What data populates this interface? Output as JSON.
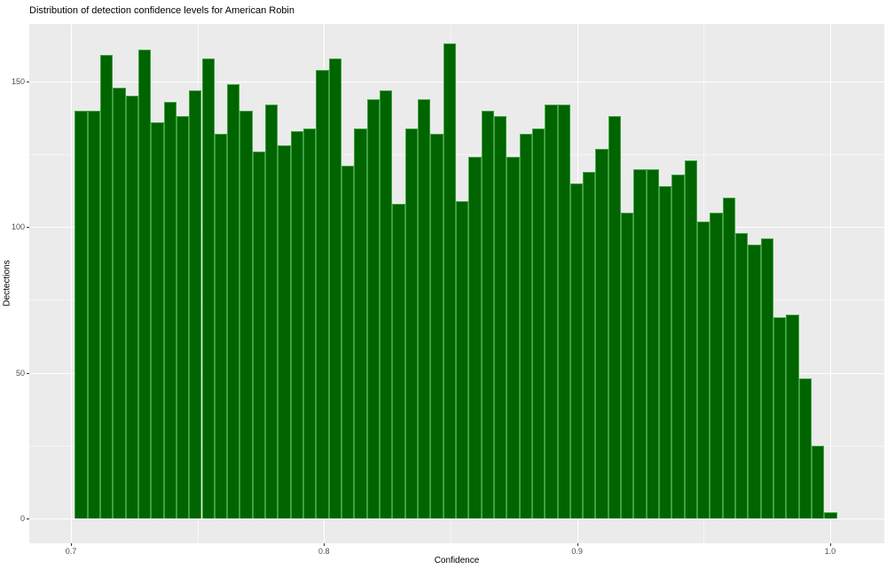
{
  "title": "Distribution of detection confidence levels for American Robin",
  "chart_data": {
    "type": "bar",
    "subtype": "histogram",
    "title": "Distribution of detection confidence levels for American Robin",
    "xlabel": "Confidence",
    "ylabel": "Dectections",
    "x_tick_labels": [
      "0.7",
      "0.8",
      "0.9",
      "1.0"
    ],
    "x_tick_values": [
      0.7,
      0.8,
      0.9,
      1.0
    ],
    "y_tick_labels": [
      "0",
      "50",
      "100",
      "150"
    ],
    "y_tick_values": [
      0,
      50,
      100,
      150
    ],
    "xlim": [
      0.6835,
      1.038
    ],
    "ylim": [
      -8.2,
      169.8
    ],
    "bin_start": 0.7015,
    "bin_width": 0.00502,
    "grid": "major-white-minor-faint",
    "legend": "none",
    "colors": {
      "bar_fill": "#006400",
      "bar_edge": "#3fa040",
      "panel_bg": "#EBEBEB",
      "grid_major": "#FFFFFF",
      "tick_label": "#4d4d4d"
    },
    "values": [
      140,
      140,
      159,
      148,
      145,
      161,
      136,
      143,
      138,
      147,
      158,
      132,
      149,
      140,
      126,
      142,
      128,
      133,
      134,
      154,
      158,
      121,
      134,
      144,
      147,
      108,
      134,
      144,
      132,
      163,
      109,
      124,
      140,
      138,
      124,
      132,
      134,
      142,
      142,
      115,
      119,
      127,
      138,
      105,
      120,
      120,
      114,
      118,
      123,
      102,
      105,
      110,
      98,
      94,
      96,
      69,
      70,
      48,
      25,
      2
    ]
  }
}
